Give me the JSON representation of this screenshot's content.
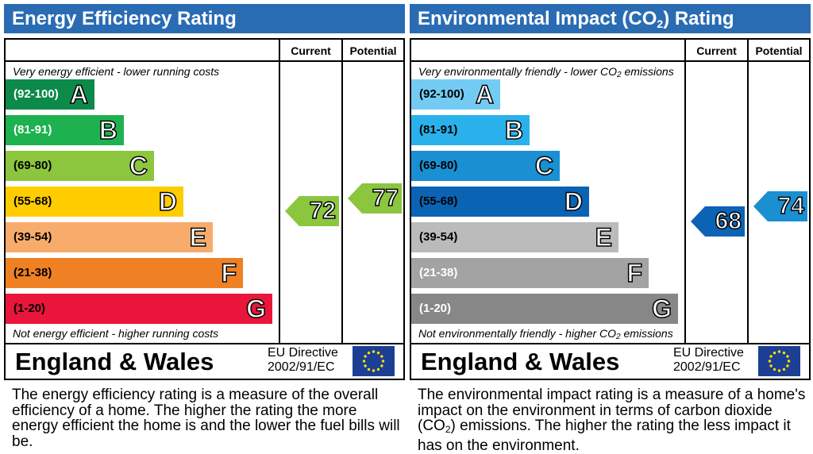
{
  "energy": {
    "title": "Energy Efficiency Rating",
    "col_current": "Current",
    "col_potential": "Potential",
    "top_hint": "Very energy efficient - lower running costs",
    "bottom_hint": "Not energy efficient - higher running costs",
    "bands": [
      {
        "range": "(92-100)",
        "letter": "A",
        "color": "#0c8a4a",
        "text_color": "#ffffff"
      },
      {
        "range": "(81-91)",
        "letter": "B",
        "color": "#1eb14f",
        "text_color": "#ffffff"
      },
      {
        "range": "(69-80)",
        "letter": "C",
        "color": "#8cc63f",
        "text_color": "#000000"
      },
      {
        "range": "(55-68)",
        "letter": "D",
        "color": "#ffcc00",
        "text_color": "#000000"
      },
      {
        "range": "(39-54)",
        "letter": "E",
        "color": "#f7ac6b",
        "text_color": "#000000"
      },
      {
        "range": "(21-38)",
        "letter": "F",
        "color": "#ef8023",
        "text_color": "#000000"
      },
      {
        "range": "(1-20)",
        "letter": "G",
        "color": "#e9153b",
        "text_color": "#000000"
      }
    ],
    "current": {
      "value": "72",
      "color": "#8cc63f"
    },
    "potential": {
      "value": "77",
      "color": "#8cc63f"
    },
    "region": "England & Wales",
    "directive_line1": "EU Directive",
    "directive_line2": "2002/91/EC",
    "description": "The energy efficiency rating is a measure of the overall efficiency of a home. The higher the rating the more energy efficient the home is and the lower the fuel bills will be."
  },
  "environment": {
    "title_pre": "Environmental Impact (CO",
    "title_sub": "2",
    "title_post": ") Rating",
    "col_current": "Current",
    "col_potential": "Potential",
    "top_hint_pre": "Very environmentally friendly - lower CO",
    "top_hint_sub": "2",
    "top_hint_post": " emissions",
    "bottom_hint_pre": "Not environmentally friendly - higher CO",
    "bottom_hint_sub": "2",
    "bottom_hint_post": " emissions",
    "bands": [
      {
        "range": "(92-100)",
        "letter": "A",
        "color": "#73cbf3",
        "text_color": "#000000"
      },
      {
        "range": "(81-91)",
        "letter": "B",
        "color": "#2ab1ec",
        "text_color": "#000000"
      },
      {
        "range": "(69-80)",
        "letter": "C",
        "color": "#1a8fd2",
        "text_color": "#000000"
      },
      {
        "range": "(55-68)",
        "letter": "D",
        "color": "#0b63b4",
        "text_color": "#000000"
      },
      {
        "range": "(39-54)",
        "letter": "E",
        "color": "#bbbbbb",
        "text_color": "#000000"
      },
      {
        "range": "(21-38)",
        "letter": "F",
        "color": "#a3a3a3",
        "text_color": "#ffffff"
      },
      {
        "range": "(1-20)",
        "letter": "G",
        "color": "#878787",
        "text_color": "#ffffff"
      }
    ],
    "current": {
      "value": "68",
      "color": "#0b63b4"
    },
    "potential": {
      "value": "74",
      "color": "#1a8fd2"
    },
    "region": "England & Wales",
    "directive_line1": "EU Directive",
    "directive_line2": "2002/91/EC",
    "description_pre": "The environmental impact rating is a measure of a home's impact on the environment in terms of carbon dioxide (CO",
    "description_sub": "2",
    "description_post": ") emissions. The higher the rating the less impact it has on the environment."
  }
}
